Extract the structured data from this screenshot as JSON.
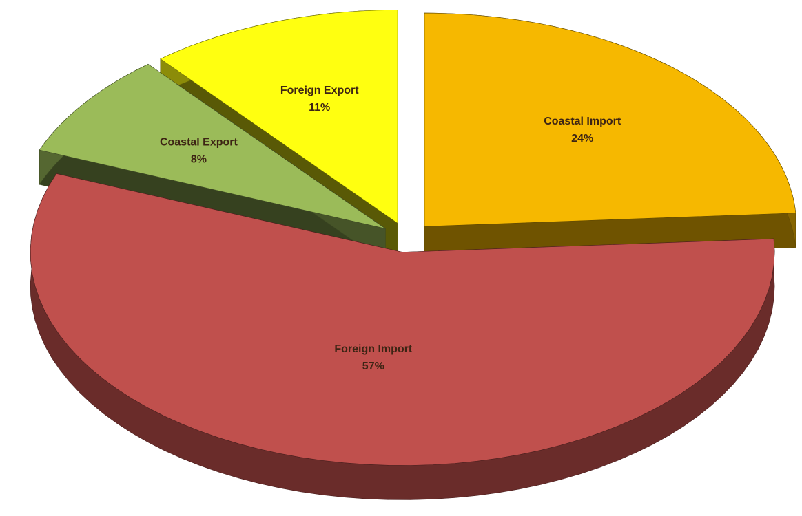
{
  "chart_data": {
    "type": "pie",
    "categories": [
      "Coastal Import",
      "Foreign Import",
      "Coastal Export",
      "Foreign Export"
    ],
    "values": [
      24,
      57,
      8,
      11
    ],
    "value_labels": [
      "24%",
      "57%",
      "8%",
      "11%"
    ],
    "colors": [
      "#f6b800",
      "#c0504d",
      "#9bbb59",
      "#ffff10"
    ]
  }
}
